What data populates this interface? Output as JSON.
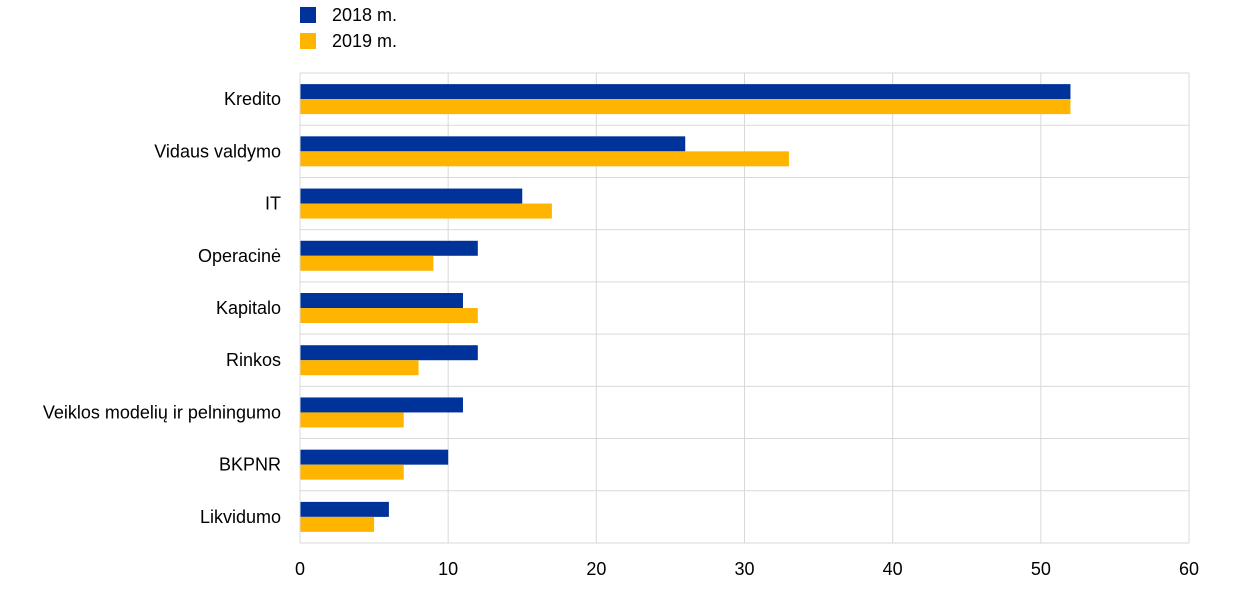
{
  "chart_data": {
    "type": "bar",
    "orientation": "horizontal",
    "categories": [
      "Kredito",
      "Vidaus valdymo",
      "IT",
      "Operacinė",
      "Kapitalo",
      "Rinkos",
      "Veiklos modelių ir pelningumo",
      "BKPNR",
      "Likvidumo"
    ],
    "series": [
      {
        "name": "2018 m.",
        "color": "#003399",
        "values": [
          52,
          26,
          15,
          12,
          11,
          12,
          11,
          10,
          6
        ]
      },
      {
        "name": "2019 m.",
        "color": "#FFB400",
        "values": [
          52,
          33,
          17,
          9,
          12,
          8,
          7,
          7,
          5
        ]
      }
    ],
    "xlim": [
      0,
      60
    ],
    "xticks": [
      0,
      10,
      20,
      30,
      40,
      50,
      60
    ],
    "xtick_labels": [
      "0",
      "10",
      "20",
      "30",
      "40",
      "50",
      "60"
    ],
    "grid": true,
    "legend_position": "top-left"
  }
}
